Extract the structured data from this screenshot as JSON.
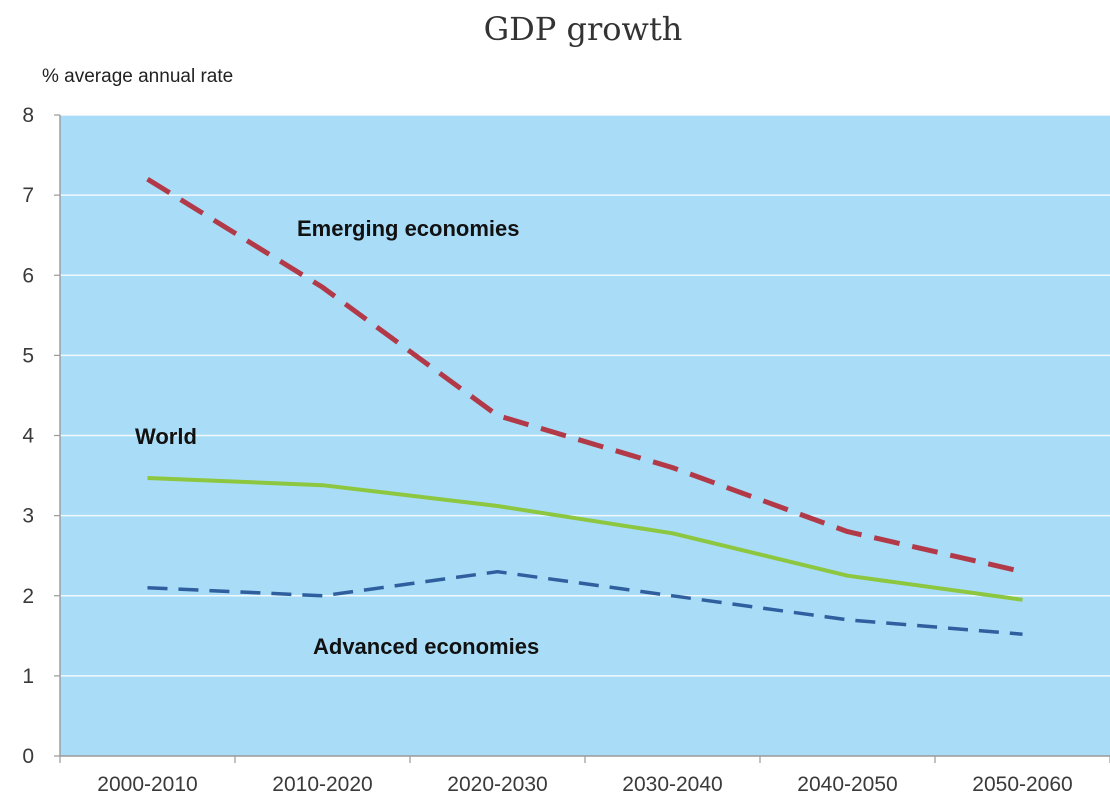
{
  "chart_data": {
    "type": "line",
    "title": "GDP growth",
    "ylabel": "% average annual rate",
    "xlabel": "",
    "categories": [
      "2000-2010",
      "2010-2020",
      "2020-2030",
      "2030-2040",
      "2040-2050",
      "2050-2060"
    ],
    "ylim": [
      0,
      8
    ],
    "yticks": [
      0,
      1,
      2,
      3,
      4,
      5,
      6,
      7,
      8
    ],
    "grid": true,
    "plot_background": "#a8dcf7",
    "series": [
      {
        "name": "Emerging economies",
        "values": [
          7.2,
          5.85,
          4.25,
          3.6,
          2.8,
          2.3
        ],
        "color": "#b23a48",
        "style": "dashed"
      },
      {
        "name": "World",
        "values": [
          3.47,
          3.38,
          3.12,
          2.78,
          2.25,
          1.95
        ],
        "color": "#8dc63f",
        "style": "solid"
      },
      {
        "name": "Advanced economies",
        "values": [
          2.1,
          2.0,
          2.3,
          2.0,
          1.7,
          1.52
        ],
        "color": "#2f5f9e",
        "style": "dashed"
      }
    ]
  }
}
